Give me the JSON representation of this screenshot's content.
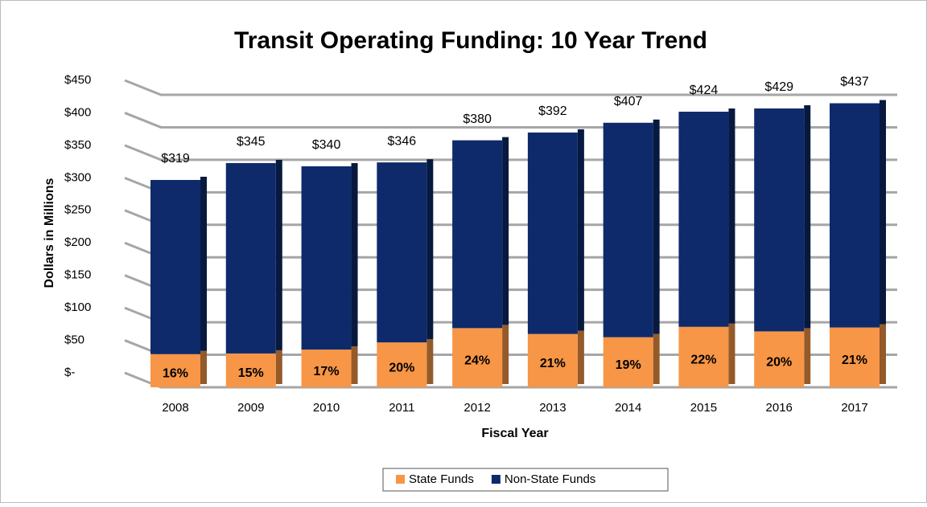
{
  "chart_data": {
    "type": "bar",
    "stacked": true,
    "title": "Transit Operating Funding: 10 Year Trend",
    "x_label": "Fiscal Year",
    "y_label": "Dollars in Millions",
    "categories": [
      "2008",
      "2009",
      "2010",
      "2011",
      "2012",
      "2013",
      "2014",
      "2015",
      "2016",
      "2017"
    ],
    "series": [
      {
        "name": "State Funds",
        "color": "#f79646",
        "values": [
          51,
          52,
          58,
          69,
          91,
          82,
          77,
          93,
          86,
          92
        ],
        "value_labels": null
      },
      {
        "name": "Non-State Funds",
        "color": "#0e2a6b",
        "values": [
          268,
          293,
          282,
          277,
          289,
          310,
          330,
          331,
          343,
          345
        ]
      }
    ],
    "share_labels": [
      "16%",
      "15%",
      "17%",
      "20%",
      "24%",
      "21%",
      "19%",
      "22%",
      "20%",
      "21%"
    ],
    "totals": [
      319,
      345,
      340,
      346,
      380,
      392,
      407,
      424,
      429,
      437
    ],
    "total_labels": [
      "$319",
      "$345",
      "$340",
      "$346",
      "$380",
      "$392",
      "$407",
      "$424",
      "$429",
      "$437"
    ],
    "ylim": [
      0,
      450
    ],
    "yticks": [
      {
        "value": 0,
        "label": "$-"
      },
      {
        "value": 50,
        "label": "$50"
      },
      {
        "value": 100,
        "label": "$100"
      },
      {
        "value": 150,
        "label": "$150"
      },
      {
        "value": 200,
        "label": "$200"
      },
      {
        "value": 250,
        "label": "$250"
      },
      {
        "value": 300,
        "label": "$300"
      },
      {
        "value": 350,
        "label": "$350"
      },
      {
        "value": 400,
        "label": "$400"
      },
      {
        "value": 450,
        "label": "$450"
      }
    ],
    "grid": true,
    "legend": "bottom"
  }
}
